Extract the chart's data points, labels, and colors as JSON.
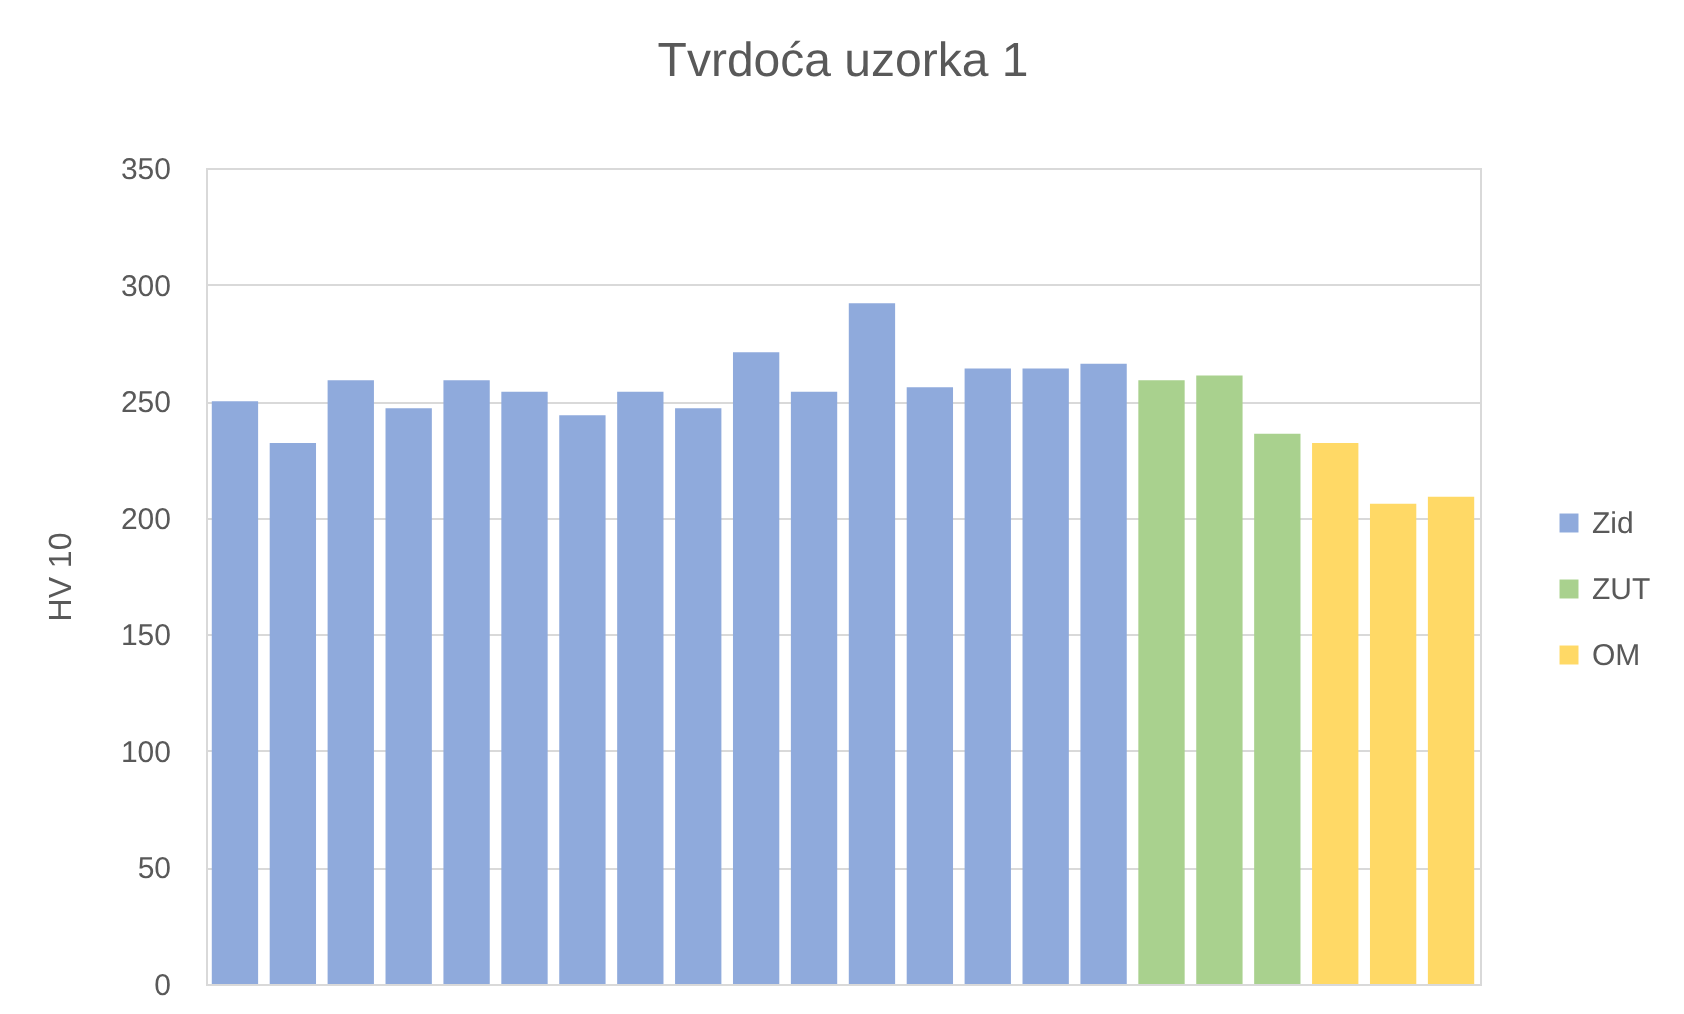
{
  "chart_data": {
    "type": "bar",
    "title": "Tvrdoća uzorka 1",
    "ylabel": "HV 10",
    "categories": [
      null,
      null,
      null,
      null,
      null,
      null,
      null,
      null,
      null,
      null,
      null,
      null,
      null,
      null,
      null,
      null,
      null,
      null,
      null,
      null,
      null,
      null
    ],
    "series": [
      {
        "name": "Zid",
        "color": "#8faadc",
        "values": [
          250,
          232,
          259,
          247,
          259,
          254,
          244,
          254,
          247,
          271,
          254,
          292,
          256,
          264,
          264,
          266,
          null,
          null,
          null,
          null,
          null,
          null
        ]
      },
      {
        "name": "ZUT",
        "color": "#a9d18e",
        "values": [
          null,
          null,
          null,
          null,
          null,
          null,
          null,
          null,
          null,
          null,
          null,
          null,
          null,
          null,
          null,
          null,
          259,
          261,
          236,
          null,
          null,
          null
        ]
      },
      {
        "name": "OM",
        "color": "#ffd966",
        "values": [
          null,
          null,
          null,
          null,
          null,
          null,
          null,
          null,
          null,
          null,
          null,
          null,
          null,
          null,
          null,
          null,
          null,
          null,
          null,
          232,
          206,
          209
        ]
      }
    ],
    "ylim": [
      0,
      350
    ],
    "yticks": [
      0,
      50,
      100,
      150,
      200,
      250,
      300,
      350
    ],
    "grid": "y",
    "legend": "right"
  }
}
